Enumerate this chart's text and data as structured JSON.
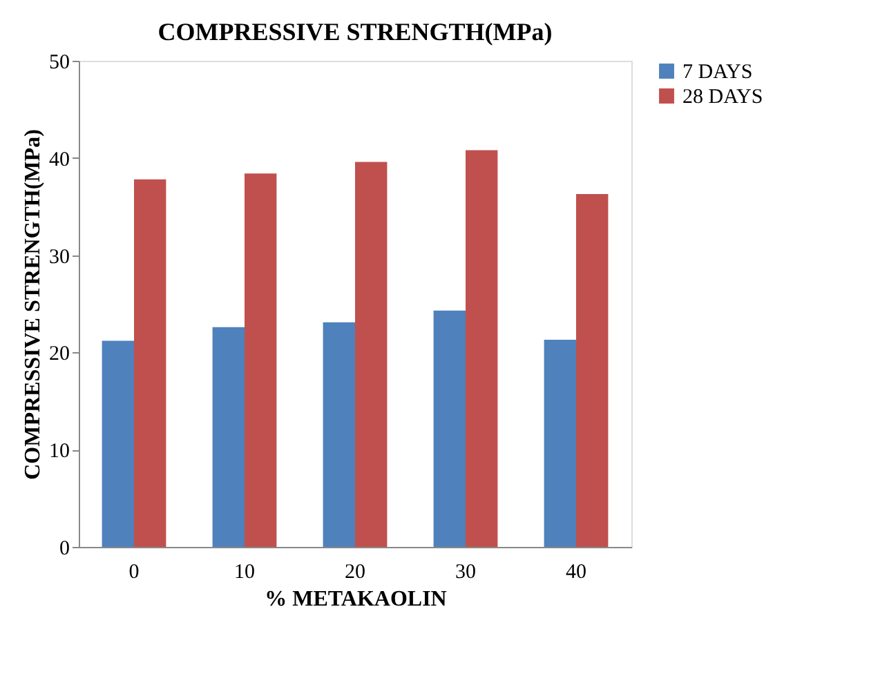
{
  "chart_data": {
    "type": "bar",
    "title": "COMPRESSIVE STRENGTH(MPa)",
    "xlabel": "% METAKAOLIN",
    "ylabel": "COMPRESSIVE STRENGTH(MPa)",
    "categories": [
      "0",
      "10",
      "20",
      "30",
      "40"
    ],
    "series": [
      {
        "name": "7 DAYS",
        "color": "#4f81bd",
        "values": [
          21.2,
          22.6,
          23.1,
          24.3,
          21.3
        ]
      },
      {
        "name": "28 DAYS",
        "color": "#c0504d",
        "values": [
          37.8,
          38.4,
          39.6,
          40.8,
          36.3
        ]
      }
    ],
    "ylim": [
      0,
      50
    ],
    "yticks": [
      0,
      10,
      20,
      30,
      40,
      50
    ],
    "grid": false,
    "legend": "right"
  }
}
